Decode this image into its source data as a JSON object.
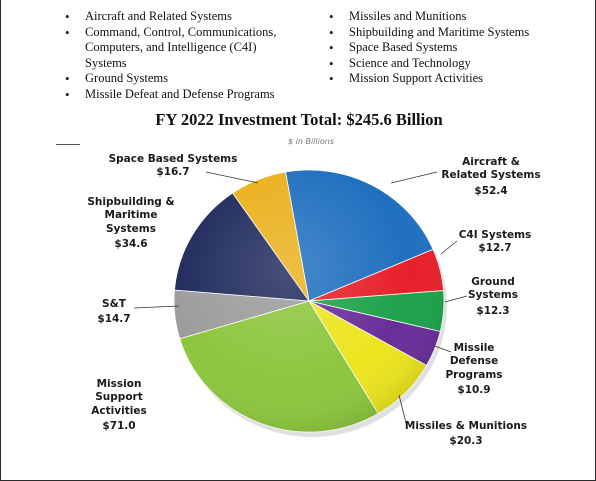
{
  "bullets": {
    "left": [
      {
        "text": "Aircraft and Related Systems"
      },
      {
        "text": "Command, Control, Communications, Computers, and Intelligence (C4I) Systems"
      },
      {
        "text": "Ground Systems"
      },
      {
        "text": "Missile Defeat and Defense Programs"
      }
    ],
    "right": [
      {
        "text": "Missiles and Munitions"
      },
      {
        "text": "Shipbuilding and Maritime Systems"
      },
      {
        "text": "Space Based Systems"
      },
      {
        "text": "Science and Technology"
      },
      {
        "text": "Mission Support Activities"
      }
    ]
  },
  "chart_data": {
    "type": "pie",
    "title": "FY 2022 Investment Total: $245.6 Billion",
    "subtitle": "$ in Billions",
    "slices": [
      {
        "label": "Aircraft & Related Systems",
        "value": 52.4,
        "value_label": "$52.4",
        "color": "#1f6fbf"
      },
      {
        "label": "C4I Systems",
        "value": 12.7,
        "value_label": "$12.7",
        "color": "#e8202a"
      },
      {
        "label": "Ground Systems",
        "value": 12.3,
        "value_label": "$12.3",
        "color": "#1ea24b"
      },
      {
        "label": "Missile Defense Programs",
        "value": 10.9,
        "value_label": "$10.9",
        "color": "#6a2e9a"
      },
      {
        "label": "Missiles & Munitions",
        "value": 20.3,
        "value_label": "$20.3",
        "color": "#ece51f"
      },
      {
        "label": "Mission Support Activities",
        "value": 71.0,
        "value_label": "$71.0",
        "color": "#8cc63e"
      },
      {
        "label": "S&T",
        "value": 14.7,
        "value_label": "$14.7",
        "color": "#9c9c9c"
      },
      {
        "label": "Shipbuilding & Maritime Systems",
        "value": 34.6,
        "value_label": "$34.6",
        "color": "#1f2a5c"
      },
      {
        "label": "Space Based Systems",
        "value": 16.7,
        "value_label": "$16.7",
        "color": "#eab01c"
      }
    ],
    "labels": {
      "aircraft": {
        "lines": [
          "Aircraft &",
          "Related Systems"
        ],
        "value": "$52.4"
      },
      "c4i": {
        "lines": [
          "C4I Systems"
        ],
        "value": "$12.7"
      },
      "ground": {
        "lines": [
          "Ground",
          "Systems"
        ],
        "value": "$12.3"
      },
      "missile_defense": {
        "lines": [
          "Missile",
          "Defense",
          "Programs"
        ],
        "value": "$10.9"
      },
      "missiles": {
        "lines": [
          "Missiles & Munitions"
        ],
        "value": "$20.3"
      },
      "mission": {
        "lines": [
          "Mission",
          "Support",
          "Activities"
        ],
        "value": "$71.0"
      },
      "st": {
        "lines": [
          "S&T"
        ],
        "value": "$14.7"
      },
      "shipbuilding": {
        "lines": [
          "Shipbuilding &",
          "Maritime",
          "Systems"
        ],
        "value": "$34.6"
      },
      "space": {
        "lines": [
          "Space Based Systems"
        ],
        "value": "$16.7"
      }
    }
  }
}
